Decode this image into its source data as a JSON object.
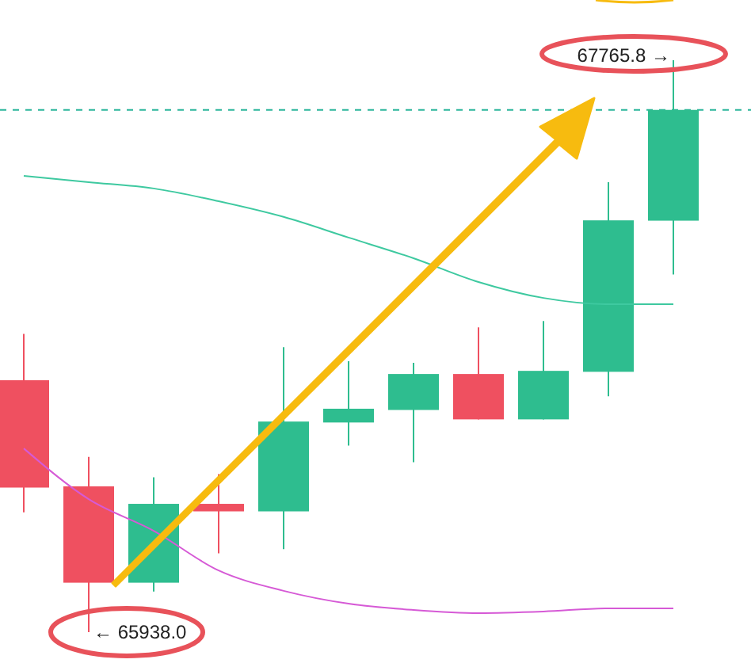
{
  "chart_data": {
    "type": "candlestick",
    "categories": [
      null,
      null,
      null,
      null,
      null,
      null,
      null,
      null,
      null,
      null,
      null
    ],
    "ohlc": [
      [
        66743,
        66891,
        66321,
        66400
      ],
      [
        66404,
        66498,
        65938.0,
        66096
      ],
      [
        66096,
        66433,
        66068,
        66348
      ],
      [
        66348,
        66443,
        66190,
        66324
      ],
      [
        66324,
        66849,
        66203,
        66611
      ],
      [
        66608,
        66804,
        66534,
        66652
      ],
      [
        66648,
        66799,
        66481,
        66763
      ],
      [
        66763,
        66912,
        66618,
        66618
      ],
      [
        66618,
        66932,
        66618,
        66773
      ],
      [
        66770,
        67376,
        66692,
        67254
      ],
      [
        67253,
        67765.8,
        67081,
        67607
      ]
    ],
    "colors": [
      "#ef5060",
      "#ef5060",
      "#2ebd8f",
      "#ef5060",
      "#2ebd8f",
      "#2ebd8f",
      "#2ebd8f",
      "#ef5060",
      "#2ebd8f",
      "#2ebd8f",
      "#2ebd8f"
    ],
    "series": [
      {
        "type": "line",
        "color": "#3ec9a0",
        "values": [
          67396,
          67376,
          67356,
          67315,
          67265,
          67199,
          67133,
          67057,
          67006,
          66986,
          66986
        ]
      },
      {
        "type": "line",
        "color": "#d65ad6",
        "values": [
          66525,
          66363,
          66262,
          66135,
          66070,
          66029,
          66009,
          65999,
          66004,
          66014,
          66014
        ]
      }
    ],
    "ref_lines": [
      {
        "axis": "y",
        "value": 67607,
        "color": "#2bb59a",
        "line_style": "dashed"
      }
    ],
    "annotations": [
      "67765.8 →",
      "← 65938.0"
    ]
  }
}
